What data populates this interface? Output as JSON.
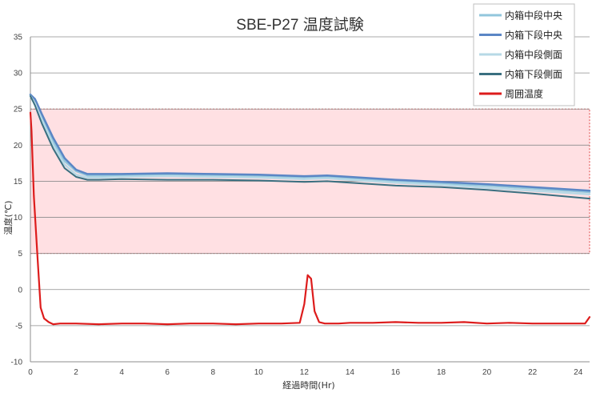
{
  "chart_data": {
    "type": "line",
    "title": "SBE-P27 温度試験",
    "xlabel": "経過時間(Hr)",
    "ylabel": "温度(℃)",
    "xlim": [
      0,
      24.5
    ],
    "ylim": [
      -10,
      35
    ],
    "xticks": [
      0,
      2,
      4,
      6,
      8,
      10,
      12,
      14,
      16,
      18,
      20,
      22,
      24
    ],
    "yticks": [
      -10,
      -5,
      0,
      5,
      10,
      15,
      20,
      25,
      30,
      35
    ],
    "grid": "horizontal",
    "legend": "top-right",
    "band": {
      "from": 5,
      "to": 25,
      "fill": "#ffe0e3",
      "border": "#e04040"
    },
    "series": [
      {
        "name": "内箱中段中央",
        "color": "#92c6dc",
        "width": 2.5,
        "x": [
          0,
          0.2,
          0.5,
          1.0,
          1.5,
          2.0,
          2.5,
          3,
          4,
          6,
          8,
          10,
          12,
          13,
          14,
          16,
          18,
          20,
          22,
          24.5
        ],
        "y": [
          27.0,
          26.2,
          24.0,
          20.5,
          17.8,
          16.4,
          15.8,
          15.8,
          15.8,
          15.9,
          15.8,
          15.7,
          15.5,
          15.6,
          15.4,
          15.0,
          14.7,
          14.4,
          14.0,
          13.5
        ]
      },
      {
        "name": "内箱下段中央",
        "color": "#5b86c5",
        "width": 2.5,
        "x": [
          0,
          0.2,
          0.5,
          1.0,
          1.5,
          2.0,
          2.5,
          3,
          4,
          6,
          8,
          10,
          12,
          13,
          14,
          16,
          18,
          20,
          22,
          24.5
        ],
        "y": [
          27.0,
          26.4,
          24.3,
          21.0,
          18.2,
          16.6,
          16.0,
          16.0,
          16.0,
          16.1,
          16.0,
          15.9,
          15.7,
          15.8,
          15.6,
          15.2,
          14.9,
          14.6,
          14.2,
          13.7
        ]
      },
      {
        "name": "内箱中段側面",
        "color": "#b7d9e6",
        "width": 2.5,
        "x": [
          0,
          0.2,
          0.5,
          1.0,
          1.5,
          2.0,
          2.5,
          3,
          4,
          6,
          8,
          10,
          12,
          13,
          14,
          16,
          18,
          20,
          22,
          24.5
        ],
        "y": [
          26.8,
          25.8,
          23.5,
          20.0,
          17.3,
          15.9,
          15.5,
          15.5,
          15.6,
          15.7,
          15.6,
          15.5,
          15.3,
          15.4,
          15.2,
          14.8,
          14.5,
          14.1,
          13.7,
          13.2
        ]
      },
      {
        "name": "内箱下段側面",
        "color": "#3a6f80",
        "width": 2.0,
        "x": [
          0,
          0.2,
          0.5,
          1.0,
          1.5,
          2.0,
          2.5,
          3,
          4,
          6,
          8,
          10,
          12,
          13,
          14,
          16,
          18,
          20,
          22,
          24.5
        ],
        "y": [
          26.8,
          25.5,
          23.0,
          19.5,
          16.8,
          15.6,
          15.2,
          15.2,
          15.3,
          15.2,
          15.2,
          15.1,
          14.9,
          15.0,
          14.8,
          14.4,
          14.2,
          13.8,
          13.3,
          12.6
        ]
      },
      {
        "name": "周囲温度",
        "color": "#dd1c1c",
        "width": 2.2,
        "x": [
          0,
          0.05,
          0.15,
          0.3,
          0.45,
          0.6,
          0.8,
          1.0,
          1.3,
          2,
          3,
          4,
          5,
          6,
          7,
          8,
          9,
          10,
          11,
          11.8,
          12.0,
          12.15,
          12.3,
          12.45,
          12.65,
          12.9,
          13.5,
          14,
          15,
          16,
          17,
          18,
          19,
          20,
          21,
          22,
          23,
          24.3,
          24.5
        ],
        "y": [
          24.5,
          22.0,
          13.0,
          5.0,
          -2.5,
          -4.0,
          -4.5,
          -4.8,
          -4.7,
          -4.7,
          -4.8,
          -4.7,
          -4.7,
          -4.8,
          -4.7,
          -4.7,
          -4.8,
          -4.7,
          -4.7,
          -4.6,
          -2.0,
          2.0,
          1.5,
          -3.0,
          -4.5,
          -4.7,
          -4.7,
          -4.6,
          -4.6,
          -4.5,
          -4.6,
          -4.6,
          -4.5,
          -4.7,
          -4.6,
          -4.7,
          -4.7,
          -4.7,
          -3.8
        ]
      }
    ]
  }
}
